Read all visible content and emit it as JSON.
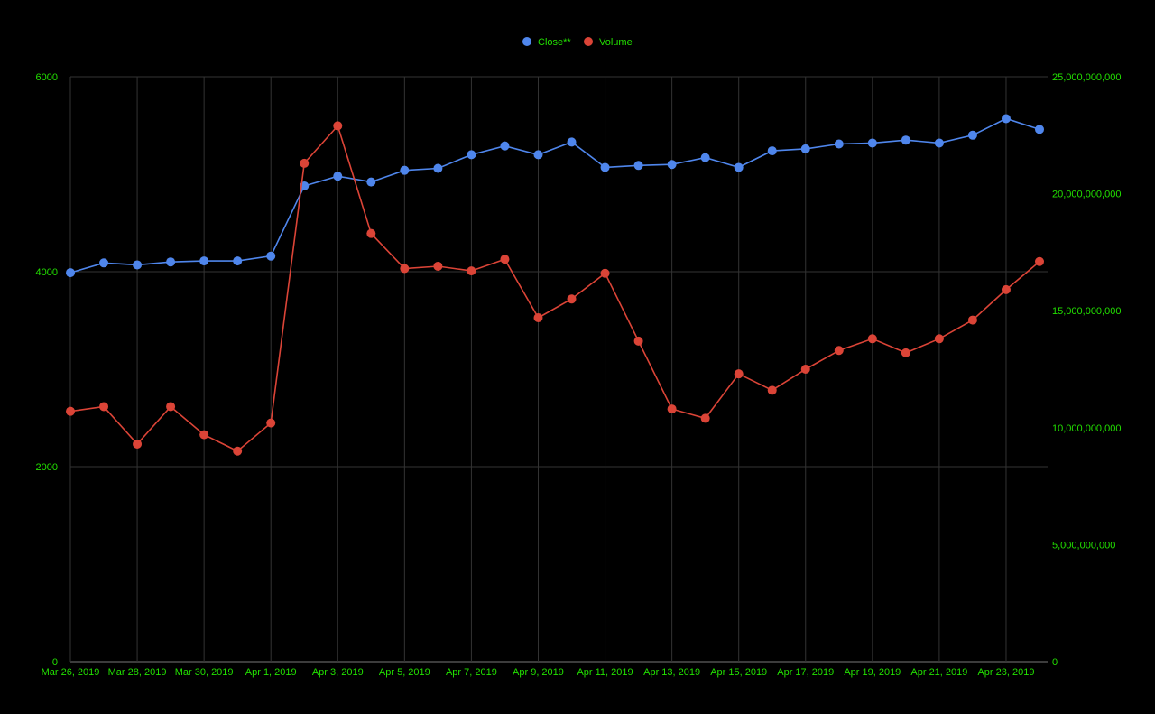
{
  "chart_data": {
    "type": "line",
    "x": [
      "Mar 26, 2019",
      "Mar 27, 2019",
      "Mar 28, 2019",
      "Mar 29, 2019",
      "Mar 30, 2019",
      "Mar 31, 2019",
      "Apr 1, 2019",
      "Apr 2, 2019",
      "Apr 3, 2019",
      "Apr 4, 2019",
      "Apr 5, 2019",
      "Apr 6, 2019",
      "Apr 7, 2019",
      "Apr 8, 2019",
      "Apr 9, 2019",
      "Apr 10, 2019",
      "Apr 11, 2019",
      "Apr 12, 2019",
      "Apr 13, 2019",
      "Apr 14, 2019",
      "Apr 15, 2019",
      "Apr 16, 2019",
      "Apr 17, 2019",
      "Apr 18, 2019",
      "Apr 19, 2019",
      "Apr 20, 2019",
      "Apr 21, 2019",
      "Apr 22, 2019",
      "Apr 23, 2019",
      "Apr 24, 2019"
    ],
    "x_tick_labels": [
      "Mar 26, 2019",
      "Mar 28, 2019",
      "Mar 30, 2019",
      "Apr 1, 2019",
      "Apr 3, 2019",
      "Apr 5, 2019",
      "Apr 7, 2019",
      "Apr 9, 2019",
      "Apr 11, 2019",
      "Apr 13, 2019",
      "Apr 15, 2019",
      "Apr 17, 2019",
      "Apr 19, 2019",
      "Apr 21, 2019",
      "Apr 23, 2019"
    ],
    "series": [
      {
        "name": "Close**",
        "axis": "left",
        "color": "#4f86ec",
        "values": [
          3990,
          4090,
          4070,
          4100,
          4110,
          4110,
          4160,
          4880,
          4980,
          4920,
          5040,
          5060,
          5200,
          5290,
          5200,
          5330,
          5070,
          5090,
          5100,
          5170,
          5070,
          5240,
          5260,
          5310,
          5320,
          5350,
          5320,
          5400,
          5570,
          5460
        ]
      },
      {
        "name": "Volume",
        "axis": "right",
        "color": "#db4437",
        "values": [
          10700000000,
          10900000000,
          9300000000,
          10900000000,
          9700000000,
          9000000000,
          10200000000,
          21300000000,
          22900000000,
          18300000000,
          16800000000,
          16900000000,
          16700000000,
          17200000000,
          14700000000,
          15500000000,
          16600000000,
          13700000000,
          10800000000,
          10400000000,
          12300000000,
          11600000000,
          12500000000,
          13300000000,
          13800000000,
          13200000000,
          13800000000,
          14600000000,
          15900000000,
          17100000000
        ]
      }
    ],
    "y_left": {
      "ticks": [
        "0",
        "2000",
        "4000",
        "6000"
      ],
      "range": [
        0,
        6000
      ]
    },
    "y_right": {
      "ticks": [
        "0",
        "5,000,000,000",
        "10,000,000,000",
        "15,000,000,000",
        "20,000,000,000",
        "25,000,000,000"
      ],
      "range": [
        0,
        25000000000
      ]
    },
    "grid": true,
    "legend_position": "top",
    "background": "#000000",
    "text_color": "#22e000",
    "grid_color": "#333333"
  }
}
